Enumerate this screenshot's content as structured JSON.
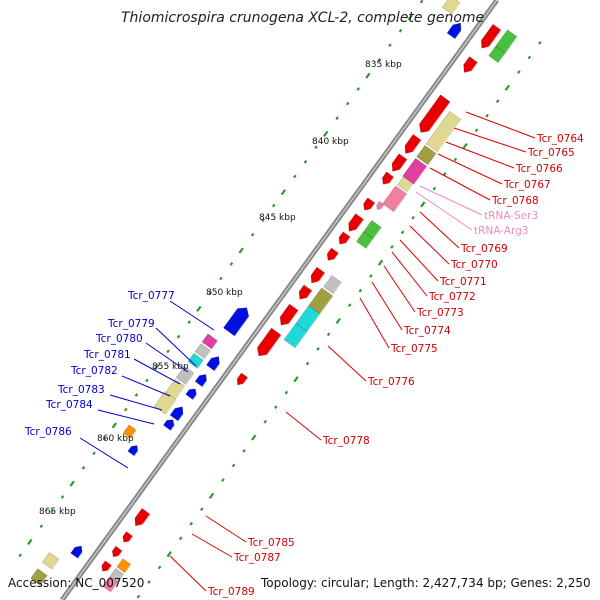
{
  "title": "Thiomicrospira crunogena XCL-2, complete genome",
  "accession": "Accession: NC_007520",
  "topology": "Topology: circular; Length: 2,427,734 bp; Genes: 2,250",
  "ruler": [
    "835 kbp",
    "840 kbp",
    "845 kbp",
    "850 kbp",
    "855 kbp",
    "860 kbp",
    "865 kbp"
  ],
  "labels_right": [
    {
      "text": "Tcr_0764",
      "color": "#d00000"
    },
    {
      "text": "Tcr_0765",
      "color": "#d00000"
    },
    {
      "text": "Tcr_0766",
      "color": "#d00000"
    },
    {
      "text": "Tcr_0767",
      "color": "#d00000"
    },
    {
      "text": "Tcr_0768",
      "color": "#d00000"
    },
    {
      "text": "tRNA-Ser3",
      "color": "#f08cc0"
    },
    {
      "text": "tRNA-Arg3",
      "color": "#f08cc0"
    },
    {
      "text": "Tcr_0769",
      "color": "#d00000"
    },
    {
      "text": "Tcr_0770",
      "color": "#d00000"
    },
    {
      "text": "Tcr_0771",
      "color": "#d00000"
    },
    {
      "text": "Tcr_0772",
      "color": "#d00000"
    },
    {
      "text": "Tcr_0773",
      "color": "#d00000"
    },
    {
      "text": "Tcr_0774",
      "color": "#d00000"
    },
    {
      "text": "Tcr_0775",
      "color": "#d00000"
    },
    {
      "text": "Tcr_0776",
      "color": "#d00000"
    },
    {
      "text": "Tcr_0778",
      "color": "#d00000"
    },
    {
      "text": "Tcr_0785",
      "color": "#d00000"
    },
    {
      "text": "Tcr_0787",
      "color": "#d00000"
    },
    {
      "text": "Tcr_0789",
      "color": "#d00000"
    }
  ],
  "labels_left": [
    {
      "text": "Tcr_0777",
      "color": "#0000cc"
    },
    {
      "text": "Tcr_0779",
      "color": "#0000cc"
    },
    {
      "text": "Tcr_0780",
      "color": "#0000cc"
    },
    {
      "text": "Tcr_0781",
      "color": "#0000cc"
    },
    {
      "text": "Tcr_0782",
      "color": "#0000cc"
    },
    {
      "text": "Tcr_0783",
      "color": "#0000cc"
    },
    {
      "text": "Tcr_0784",
      "color": "#0000cc"
    },
    {
      "text": "Tcr_0786",
      "color": "#0000cc"
    }
  ],
  "colors": {
    "forward_gene": "#e80000",
    "reverse_gene": "#0010e0",
    "backbone": "#8a8a8a",
    "ruler_dots": "#2a9a2a",
    "cog_green": "#4ac040",
    "cog_olive": "#a0a040",
    "cog_khaki": "#e0d890",
    "cog_cyan": "#20d8d8",
    "cog_pink": "#f080a0",
    "cog_magenta": "#e040a0",
    "cog_gray": "#c0c0c0",
    "cog_orange": "#ff9000"
  }
}
